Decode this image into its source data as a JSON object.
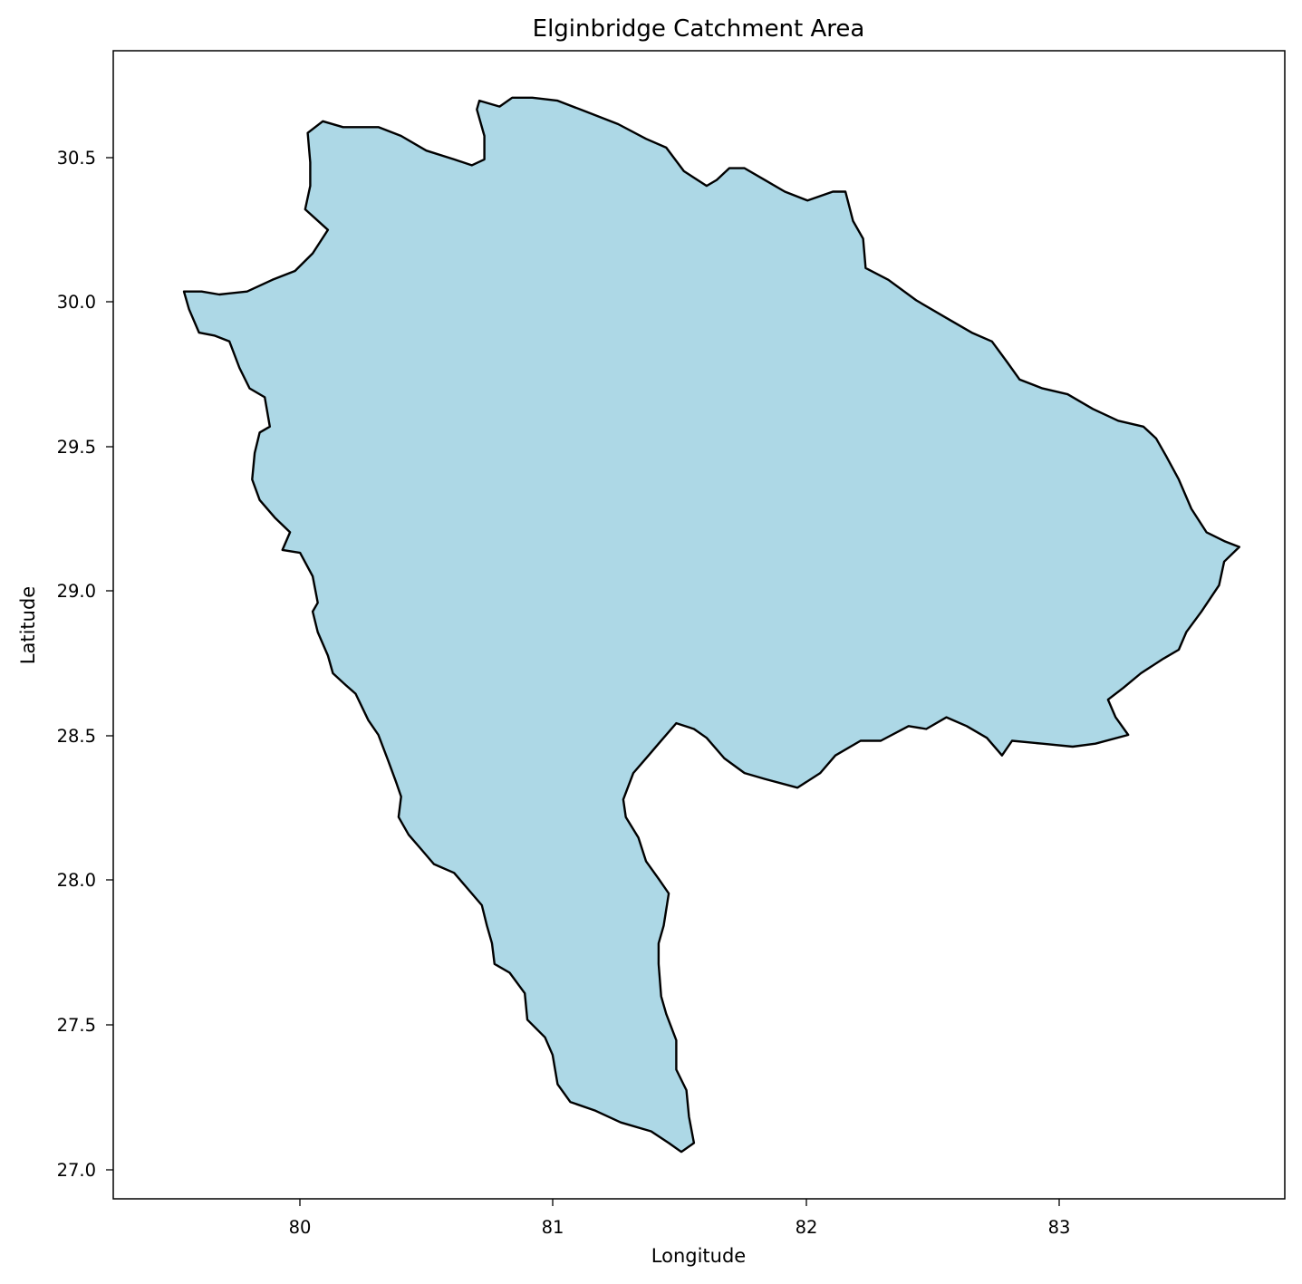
{
  "map": {
    "title": "Elginbridge Catchment Area",
    "xlabel": "Longitude",
    "ylabel": "Latitude",
    "fill_color": "#add8e6",
    "edge_color": "#000000",
    "xlim": [
      79.22,
      83.86
    ],
    "ylim": [
      26.93,
      30.84
    ],
    "x_ticks": [
      "80",
      "81",
      "82",
      "83"
    ],
    "y_ticks": [
      "27.0",
      "27.5",
      "28.0",
      "28.5",
      "29.0",
      "29.5",
      "30.0",
      "30.5"
    ]
  },
  "chart_data": {
    "type": "other",
    "title": "Elginbridge Catchment Area",
    "xlabel": "Longitude",
    "ylabel": "Latitude",
    "xlim": [
      79.22,
      83.86
    ],
    "ylim": [
      26.93,
      30.84
    ],
    "grid": false,
    "polygon": [
      [
        79.5,
        30.02
      ],
      [
        79.52,
        29.96
      ],
      [
        79.56,
        29.88
      ],
      [
        79.62,
        29.87
      ],
      [
        79.68,
        29.85
      ],
      [
        79.72,
        29.76
      ],
      [
        79.76,
        29.69
      ],
      [
        79.82,
        29.66
      ],
      [
        79.84,
        29.56
      ],
      [
        79.8,
        29.54
      ],
      [
        79.78,
        29.47
      ],
      [
        79.77,
        29.38
      ],
      [
        79.8,
        29.31
      ],
      [
        79.86,
        29.25
      ],
      [
        79.92,
        29.2
      ],
      [
        79.89,
        29.14
      ],
      [
        79.96,
        29.13
      ],
      [
        80.01,
        29.05
      ],
      [
        80.03,
        28.96
      ],
      [
        80.01,
        28.93
      ],
      [
        80.03,
        28.86
      ],
      [
        80.07,
        28.78
      ],
      [
        80.09,
        28.72
      ],
      [
        80.14,
        28.68
      ],
      [
        80.18,
        28.65
      ],
      [
        80.23,
        28.56
      ],
      [
        80.27,
        28.51
      ],
      [
        80.31,
        28.42
      ],
      [
        80.34,
        28.35
      ],
      [
        80.36,
        28.3
      ],
      [
        80.35,
        28.23
      ],
      [
        80.39,
        28.17
      ],
      [
        80.44,
        28.12
      ],
      [
        80.49,
        28.07
      ],
      [
        80.57,
        28.04
      ],
      [
        80.62,
        27.99
      ],
      [
        80.68,
        27.93
      ],
      [
        80.7,
        27.86
      ],
      [
        80.72,
        27.8
      ],
      [
        80.73,
        27.73
      ],
      [
        80.79,
        27.7
      ],
      [
        80.85,
        27.63
      ],
      [
        80.86,
        27.54
      ],
      [
        80.93,
        27.48
      ],
      [
        80.96,
        27.42
      ],
      [
        80.98,
        27.32
      ],
      [
        81.03,
        27.26
      ],
      [
        81.13,
        27.23
      ],
      [
        81.23,
        27.19
      ],
      [
        81.35,
        27.16
      ],
      [
        81.42,
        27.12
      ],
      [
        81.47,
        27.09
      ],
      [
        81.52,
        27.12
      ],
      [
        81.5,
        27.21
      ],
      [
        81.49,
        27.3
      ],
      [
        81.45,
        27.37
      ],
      [
        81.45,
        27.47
      ],
      [
        81.41,
        27.56
      ],
      [
        81.39,
        27.62
      ],
      [
        81.38,
        27.73
      ],
      [
        81.38,
        27.8
      ],
      [
        81.4,
        27.86
      ],
      [
        81.42,
        27.97
      ],
      [
        81.38,
        28.02
      ],
      [
        81.33,
        28.08
      ],
      [
        81.3,
        28.16
      ],
      [
        81.25,
        28.23
      ],
      [
        81.24,
        28.29
      ],
      [
        81.28,
        28.38
      ],
      [
        81.34,
        28.44
      ],
      [
        81.38,
        28.48
      ],
      [
        81.45,
        28.55
      ],
      [
        81.52,
        28.53
      ],
      [
        81.57,
        28.5
      ],
      [
        81.64,
        28.43
      ],
      [
        81.72,
        28.38
      ],
      [
        81.8,
        28.36
      ],
      [
        81.93,
        28.33
      ],
      [
        82.02,
        28.38
      ],
      [
        82.08,
        28.44
      ],
      [
        82.18,
        28.49
      ],
      [
        82.26,
        28.49
      ],
      [
        82.37,
        28.54
      ],
      [
        82.44,
        28.53
      ],
      [
        82.52,
        28.57
      ],
      [
        82.6,
        28.54
      ],
      [
        82.68,
        28.5
      ],
      [
        82.74,
        28.44
      ],
      [
        82.78,
        28.49
      ],
      [
        82.9,
        28.48
      ],
      [
        83.02,
        28.47
      ],
      [
        83.11,
        28.48
      ],
      [
        83.24,
        28.51
      ],
      [
        83.19,
        28.57
      ],
      [
        83.16,
        28.63
      ],
      [
        83.22,
        28.67
      ],
      [
        83.29,
        28.72
      ],
      [
        83.38,
        28.77
      ],
      [
        83.44,
        28.8
      ],
      [
        83.47,
        28.86
      ],
      [
        83.53,
        28.93
      ],
      [
        83.6,
        29.02
      ],
      [
        83.62,
        29.1
      ],
      [
        83.68,
        29.15
      ],
      [
        83.62,
        29.17
      ],
      [
        83.55,
        29.2
      ],
      [
        83.49,
        29.28
      ],
      [
        83.44,
        29.38
      ],
      [
        83.39,
        29.46
      ],
      [
        83.35,
        29.52
      ],
      [
        83.3,
        29.56
      ],
      [
        83.2,
        29.58
      ],
      [
        83.1,
        29.62
      ],
      [
        83.0,
        29.67
      ],
      [
        82.9,
        29.69
      ],
      [
        82.81,
        29.72
      ],
      [
        82.76,
        29.78
      ],
      [
        82.7,
        29.85
      ],
      [
        82.62,
        29.88
      ],
      [
        82.52,
        29.93
      ],
      [
        82.4,
        29.99
      ],
      [
        82.29,
        30.06
      ],
      [
        82.2,
        30.1
      ],
      [
        82.19,
        30.2
      ],
      [
        82.15,
        30.26
      ],
      [
        82.12,
        30.36
      ],
      [
        82.07,
        30.36
      ],
      [
        81.97,
        30.33
      ],
      [
        81.88,
        30.36
      ],
      [
        81.8,
        30.4
      ],
      [
        81.72,
        30.44
      ],
      [
        81.66,
        30.44
      ],
      [
        81.61,
        30.4
      ],
      [
        81.57,
        30.38
      ],
      [
        81.48,
        30.43
      ],
      [
        81.41,
        30.51
      ],
      [
        81.33,
        30.54
      ],
      [
        81.22,
        30.59
      ],
      [
        81.1,
        30.63
      ],
      [
        80.98,
        30.67
      ],
      [
        80.88,
        30.68
      ],
      [
        80.8,
        30.68
      ],
      [
        80.75,
        30.65
      ],
      [
        80.67,
        30.67
      ],
      [
        80.66,
        30.64
      ],
      [
        80.69,
        30.55
      ],
      [
        80.69,
        30.47
      ],
      [
        80.64,
        30.45
      ],
      [
        80.57,
        30.47
      ],
      [
        80.46,
        30.5
      ],
      [
        80.36,
        30.55
      ],
      [
        80.27,
        30.58
      ],
      [
        80.13,
        30.58
      ],
      [
        80.05,
        30.6
      ],
      [
        79.99,
        30.56
      ],
      [
        80.0,
        30.46
      ],
      [
        80.0,
        30.38
      ],
      [
        79.98,
        30.3
      ],
      [
        80.07,
        30.23
      ],
      [
        80.01,
        30.15
      ],
      [
        79.94,
        30.09
      ],
      [
        79.85,
        30.06
      ],
      [
        79.75,
        30.02
      ],
      [
        79.64,
        30.01
      ],
      [
        79.57,
        30.02
      ],
      [
        79.54,
        30.02
      ]
    ]
  }
}
